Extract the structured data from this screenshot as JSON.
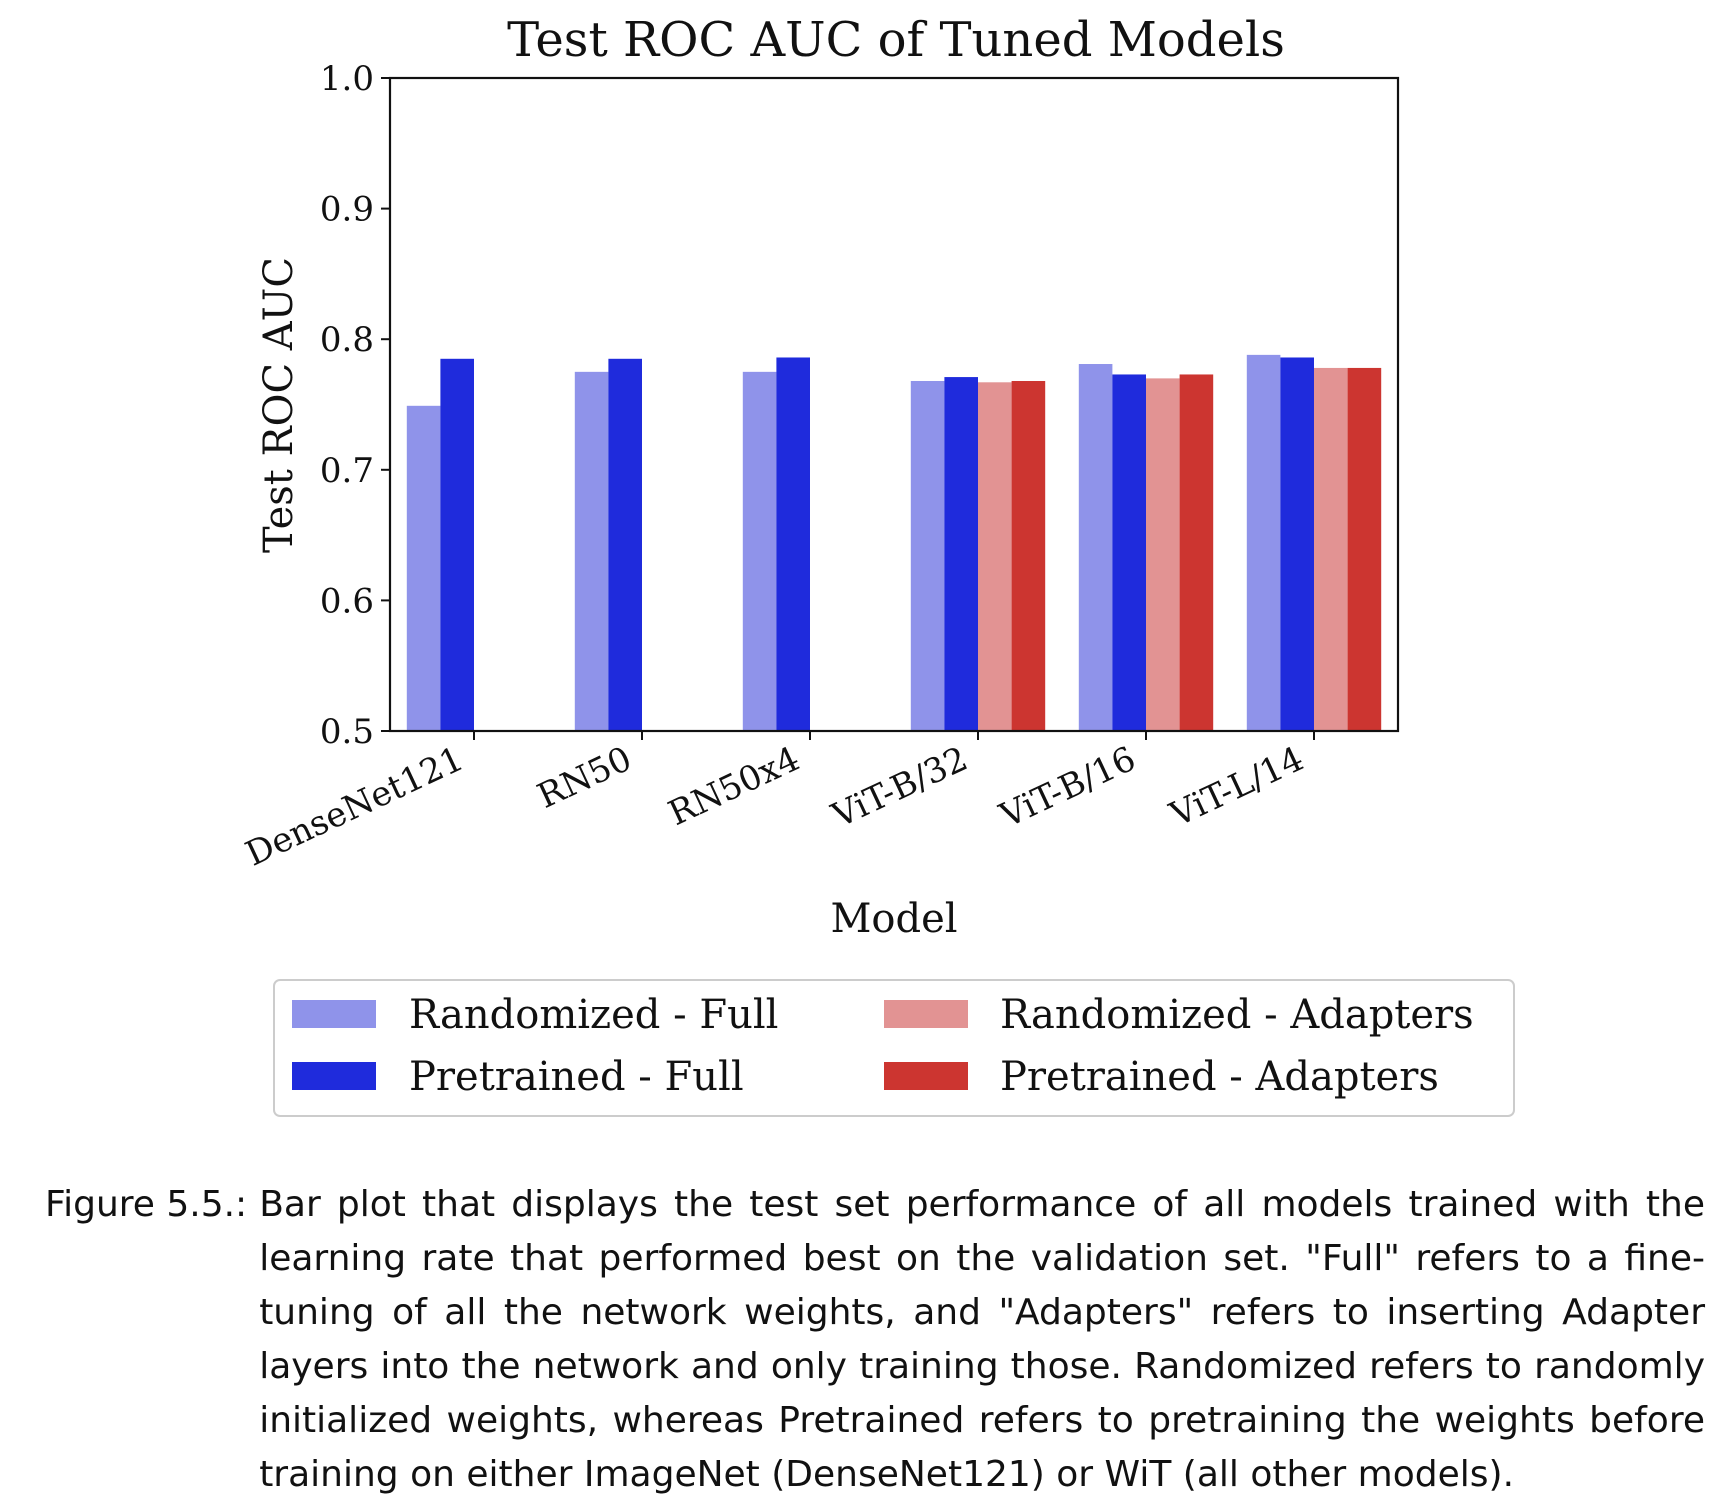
{
  "chart_data": {
    "type": "bar",
    "title": "Test ROC AUC of Tuned Models",
    "xlabel": "Model",
    "ylabel": "Test ROC AUC",
    "ylim": [
      0.5,
      1.0
    ],
    "yticks": [
      "0.5",
      "0.6",
      "0.7",
      "0.8",
      "0.9",
      "1.0"
    ],
    "categories": [
      "DenseNet121",
      "RN50",
      "RN50x4",
      "ViT-B/32",
      "ViT-B/16",
      "ViT-L/14"
    ],
    "series": [
      {
        "name": "Randomized - Full",
        "color": "#8f93ea",
        "values": [
          0.749,
          0.775,
          0.775,
          0.768,
          0.781,
          0.788
        ]
      },
      {
        "name": "Pretrained - Full",
        "color": "#1f2bdc",
        "values": [
          0.785,
          0.785,
          0.786,
          0.771,
          0.773,
          0.786
        ]
      },
      {
        "name": "Randomized - Adapters",
        "color": "#e29393",
        "values": [
          null,
          null,
          null,
          0.767,
          0.77,
          0.778
        ]
      },
      {
        "name": "Pretrained - Adapters",
        "color": "#cc3530",
        "values": [
          null,
          null,
          null,
          0.768,
          0.773,
          0.778
        ]
      }
    ],
    "legend": "bottom-center"
  },
  "caption": {
    "label": "Figure 5.5.:",
    "text": "Bar plot that displays the test set performance of all models trained with the learning rate that performed best on the validation set. \"Full\" refers to a fine-tuning of all the network weights, and \"Adapters\" refers to inserting Adapter layers into the network and only training those. Randomized refers to randomly initialized weights, whereas Pretrained refers to pretraining the weights before training on either ImageNet (DenseNet121) or WiT (all other models)."
  }
}
